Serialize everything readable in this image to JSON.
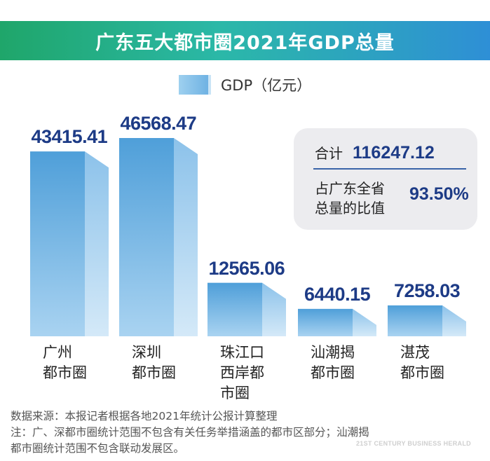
{
  "title": "广东五大都市圈2021年GDP总量",
  "legend": "GDP（亿元）",
  "chart_data": {
    "type": "bar",
    "title": "广东五大都市圈2021年GDP总量",
    "ylabel": "GDP（亿元）",
    "ylim": [
      0,
      50000
    ],
    "categories": [
      "广州都市圈",
      "深圳都市圈",
      "珠江口西岸都市圈",
      "汕潮揭都市圈",
      "湛茂都市圈"
    ],
    "category_labels": [
      "广州\n都市圈",
      "深圳\n都市圈",
      "珠江口\n西岸都\n市圈",
      "汕潮揭\n都市圈",
      "湛茂\n都市圈"
    ],
    "values": [
      43415.41,
      46568.47,
      12565.06,
      6440.15,
      7258.03
    ],
    "value_labels": [
      "43415.41",
      "46568.47",
      "12565.06",
      "6440.15",
      "7258.03"
    ]
  },
  "summary": {
    "total_label": "合计",
    "total_value": "116247.12",
    "share_label": "占广东全省\n总量的比值",
    "share_value": "93.50%"
  },
  "footnotes": {
    "source": "数据来源：本报记者根据各地2021年统计公报计算整理",
    "note_line1": "注：广、深都市圈统计范围不包含有关任务举措涵盖的都市区部分；汕潮揭",
    "note_line2": "都市圈统计范围不包含联动发展区。"
  },
  "watermark": "21ST CENTURY BUSINESS HERALD",
  "colors": {
    "bar_front_top": "#4f9fd9",
    "bar_front_bottom": "#a9d3f1",
    "bar_side_top": "#8cc2ea",
    "bar_side_bottom": "#d4e9f8",
    "value_text": "#1d3b86"
  }
}
